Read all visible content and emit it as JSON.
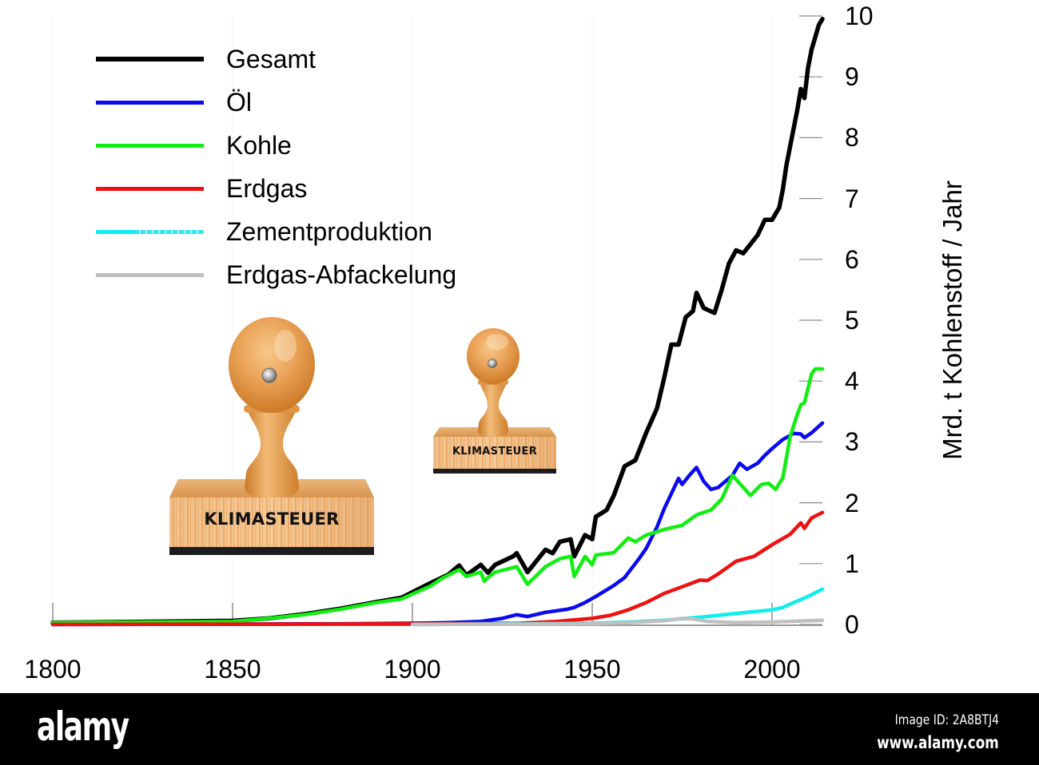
{
  "chart_data": {
    "type": "line",
    "title": "",
    "xlabel": "",
    "ylabel": "Mrd. t Kohlenstoff / Jahr",
    "xlim": [
      1800,
      2014
    ],
    "ylim": [
      0,
      10
    ],
    "xticks": [
      1800,
      1850,
      1900,
      1950,
      2000
    ],
    "yticks": [
      0,
      1,
      2,
      3,
      4,
      5,
      6,
      7,
      8,
      9,
      10
    ],
    "grid": false,
    "legend_position": "upper-left",
    "series": [
      {
        "name": "Gesamt",
        "color": "#000000",
        "points": [
          [
            1800,
            0.03
          ],
          [
            1850,
            0.06
          ],
          [
            1860,
            0.1
          ],
          [
            1870,
            0.17
          ],
          [
            1880,
            0.26
          ],
          [
            1890,
            0.37
          ],
          [
            1897,
            0.44
          ],
          [
            1900,
            0.53
          ],
          [
            1905,
            0.68
          ],
          [
            1910,
            0.82
          ],
          [
            1913,
            0.97
          ],
          [
            1915,
            0.81
          ],
          [
            1919,
            0.98
          ],
          [
            1921,
            0.85
          ],
          [
            1923,
            0.98
          ],
          [
            1928,
            1.12
          ],
          [
            1929,
            1.17
          ],
          [
            1932,
            0.86
          ],
          [
            1937,
            1.23
          ],
          [
            1939,
            1.17
          ],
          [
            1941,
            1.36
          ],
          [
            1944,
            1.4
          ],
          [
            1945,
            1.12
          ],
          [
            1948,
            1.47
          ],
          [
            1950,
            1.4
          ],
          [
            1951,
            1.77
          ],
          [
            1954,
            1.88
          ],
          [
            1956,
            2.12
          ],
          [
            1959,
            2.6
          ],
          [
            1962,
            2.7
          ],
          [
            1965,
            3.15
          ],
          [
            1968,
            3.55
          ],
          [
            1970,
            4.05
          ],
          [
            1972,
            4.6
          ],
          [
            1974,
            4.6
          ],
          [
            1976,
            5.05
          ],
          [
            1978,
            5.15
          ],
          [
            1979,
            5.45
          ],
          [
            1981,
            5.2
          ],
          [
            1984,
            5.12
          ],
          [
            1986,
            5.5
          ],
          [
            1988,
            5.93
          ],
          [
            1990,
            6.15
          ],
          [
            1992,
            6.1
          ],
          [
            1994,
            6.25
          ],
          [
            1996,
            6.4
          ],
          [
            1998,
            6.65
          ],
          [
            2000,
            6.65
          ],
          [
            2002,
            6.85
          ],
          [
            2003,
            7.15
          ],
          [
            2004,
            7.55
          ],
          [
            2006,
            8.15
          ],
          [
            2007,
            8.45
          ],
          [
            2008,
            8.8
          ],
          [
            2009,
            8.65
          ],
          [
            2010,
            9.15
          ],
          [
            2011,
            9.45
          ],
          [
            2012,
            9.65
          ],
          [
            2013,
            9.85
          ],
          [
            2014,
            9.95
          ]
        ]
      },
      {
        "name": "Öl",
        "color": "#0a0af0",
        "points": [
          [
            1800,
            0
          ],
          [
            1880,
            0.01
          ],
          [
            1900,
            0.02
          ],
          [
            1910,
            0.03
          ],
          [
            1919,
            0.05
          ],
          [
            1925,
            0.1
          ],
          [
            1929,
            0.16
          ],
          [
            1932,
            0.13
          ],
          [
            1937,
            0.2
          ],
          [
            1943,
            0.25
          ],
          [
            1945,
            0.28
          ],
          [
            1948,
            0.36
          ],
          [
            1951,
            0.46
          ],
          [
            1956,
            0.64
          ],
          [
            1959,
            0.77
          ],
          [
            1963,
            1.08
          ],
          [
            1965,
            1.25
          ],
          [
            1968,
            1.6
          ],
          [
            1970,
            1.9
          ],
          [
            1972,
            2.15
          ],
          [
            1974,
            2.4
          ],
          [
            1975,
            2.3
          ],
          [
            1977,
            2.45
          ],
          [
            1979,
            2.58
          ],
          [
            1981,
            2.35
          ],
          [
            1983,
            2.22
          ],
          [
            1985,
            2.25
          ],
          [
            1987,
            2.35
          ],
          [
            1989,
            2.45
          ],
          [
            1991,
            2.65
          ],
          [
            1993,
            2.55
          ],
          [
            1996,
            2.65
          ],
          [
            1998,
            2.78
          ],
          [
            2000,
            2.89
          ],
          [
            2003,
            3.04
          ],
          [
            2006,
            3.14
          ],
          [
            2008,
            3.13
          ],
          [
            2009,
            3.07
          ],
          [
            2011,
            3.15
          ],
          [
            2014,
            3.31
          ]
        ]
      },
      {
        "name": "Kohle",
        "color": "#11ee11",
        "points": [
          [
            1800,
            0.03
          ],
          [
            1850,
            0.05
          ],
          [
            1860,
            0.1
          ],
          [
            1870,
            0.16
          ],
          [
            1880,
            0.25
          ],
          [
            1890,
            0.36
          ],
          [
            1897,
            0.42
          ],
          [
            1900,
            0.5
          ],
          [
            1905,
            0.63
          ],
          [
            1908,
            0.75
          ],
          [
            1913,
            0.9
          ],
          [
            1915,
            0.79
          ],
          [
            1919,
            0.86
          ],
          [
            1920,
            0.71
          ],
          [
            1921,
            0.77
          ],
          [
            1923,
            0.86
          ],
          [
            1929,
            0.95
          ],
          [
            1932,
            0.66
          ],
          [
            1937,
            0.95
          ],
          [
            1941,
            1.08
          ],
          [
            1944,
            1.12
          ],
          [
            1945,
            0.79
          ],
          [
            1948,
            1.12
          ],
          [
            1950,
            0.98
          ],
          [
            1951,
            1.14
          ],
          [
            1956,
            1.18
          ],
          [
            1960,
            1.42
          ],
          [
            1962,
            1.36
          ],
          [
            1965,
            1.47
          ],
          [
            1970,
            1.56
          ],
          [
            1975,
            1.63
          ],
          [
            1979,
            1.8
          ],
          [
            1983,
            1.88
          ],
          [
            1986,
            2.06
          ],
          [
            1989,
            2.45
          ],
          [
            1992,
            2.25
          ],
          [
            1994,
            2.12
          ],
          [
            1997,
            2.3
          ],
          [
            1999,
            2.32
          ],
          [
            2001,
            2.22
          ],
          [
            2003,
            2.41
          ],
          [
            2005,
            3.08
          ],
          [
            2007,
            3.45
          ],
          [
            2008,
            3.61
          ],
          [
            2009,
            3.64
          ],
          [
            2011,
            4.12
          ],
          [
            2012,
            4.2
          ],
          [
            2014,
            4.2
          ]
        ]
      },
      {
        "name": "Erdgas",
        "color": "#ee1111",
        "points": [
          [
            1800,
            0
          ],
          [
            1900,
            0.01
          ],
          [
            1930,
            0.02
          ],
          [
            1940,
            0.05
          ],
          [
            1950,
            0.1
          ],
          [
            1955,
            0.15
          ],
          [
            1960,
            0.24
          ],
          [
            1965,
            0.36
          ],
          [
            1970,
            0.51
          ],
          [
            1975,
            0.62
          ],
          [
            1980,
            0.73
          ],
          [
            1982,
            0.72
          ],
          [
            1985,
            0.83
          ],
          [
            1990,
            1.04
          ],
          [
            1995,
            1.12
          ],
          [
            2000,
            1.31
          ],
          [
            2005,
            1.48
          ],
          [
            2008,
            1.67
          ],
          [
            2009,
            1.58
          ],
          [
            2011,
            1.75
          ],
          [
            2014,
            1.84
          ]
        ]
      },
      {
        "name": "Zementproduktion",
        "color": "#11eeee",
        "points": [
          [
            1900,
            0
          ],
          [
            1930,
            0.01
          ],
          [
            1950,
            0.02
          ],
          [
            1960,
            0.04
          ],
          [
            1970,
            0.07
          ],
          [
            1980,
            0.12
          ],
          [
            1990,
            0.18
          ],
          [
            2000,
            0.24
          ],
          [
            2003,
            0.28
          ],
          [
            2006,
            0.36
          ],
          [
            2010,
            0.46
          ],
          [
            2014,
            0.58
          ]
        ]
      },
      {
        "name": "Erdgas-Abfackelung",
        "color": "#c0c0c0",
        "points": [
          [
            1900,
            0
          ],
          [
            1950,
            0.01
          ],
          [
            1960,
            0.03
          ],
          [
            1970,
            0.06
          ],
          [
            1975,
            0.1
          ],
          [
            1978,
            0.09
          ],
          [
            1982,
            0.05
          ],
          [
            1990,
            0.03
          ],
          [
            2000,
            0.04
          ],
          [
            2010,
            0.06
          ],
          [
            2014,
            0.07
          ]
        ]
      }
    ]
  },
  "illustrations": {
    "stamp_large": {
      "label": "KLIMASTEUER"
    },
    "stamp_small": {
      "label": "KLIMASTEUER"
    }
  },
  "footer": {
    "logo": "alamy",
    "image_id": "Image ID: 2A8BTJ4",
    "website": "www.alamy.com"
  }
}
